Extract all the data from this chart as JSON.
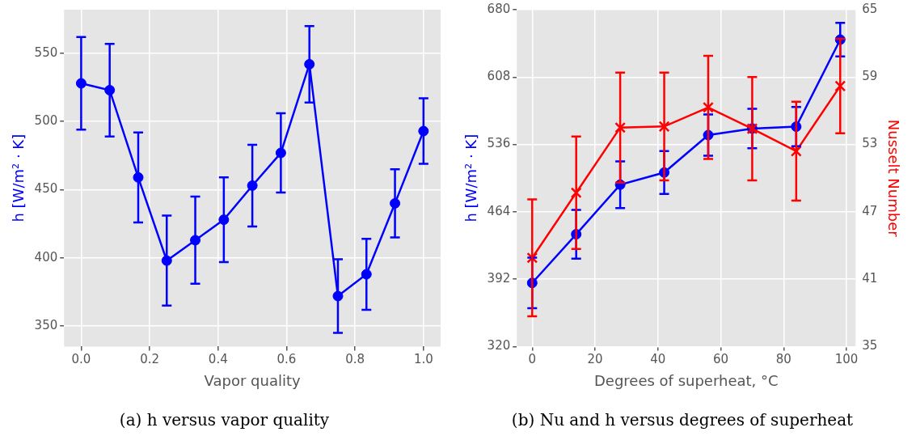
{
  "chart_data": [
    {
      "type": "line",
      "title": "(a) h versus vapor quality",
      "xlabel": "Vapor quality",
      "ylabel": "h [W/m² · K]",
      "x": [
        0,
        0.0833,
        0.1667,
        0.25,
        0.3333,
        0.4167,
        0.5,
        0.5833,
        0.6667,
        0.75,
        0.8333,
        0.9167,
        1
      ],
      "series": [
        {
          "color": "#0000ff",
          "marker": "circle",
          "values": [
            528,
            523,
            459,
            398,
            413,
            428,
            453,
            477,
            542,
            372,
            388,
            440,
            493
          ],
          "errors": [
            34,
            34,
            33,
            33,
            32,
            31,
            30,
            29,
            28,
            27,
            26,
            25,
            24
          ]
        }
      ],
      "xlim": [
        -0.05,
        1.05
      ],
      "xticks": [
        {
          "value": 0,
          "label": "0.0"
        },
        {
          "value": 0.2,
          "label": "0.2"
        },
        {
          "value": 0.4,
          "label": "0.4"
        },
        {
          "value": 0.6,
          "label": "0.6"
        },
        {
          "value": 0.8,
          "label": "0.8"
        },
        {
          "value": 1,
          "label": "1.0"
        }
      ],
      "ylim": [
        335,
        582
      ],
      "yticks": [
        350,
        400,
        450,
        500,
        550
      ],
      "grid": true,
      "legend": false,
      "line_style": "solid"
    },
    {
      "type": "line",
      "title": "(b) Nu and h versus degrees of superheat",
      "xlabel": "Degrees of superheat, °C",
      "ylabel": "h [W/m² · K]",
      "y2label": "Nusselt Number",
      "x": [
        0,
        14,
        28,
        42,
        56,
        70,
        84,
        98
      ],
      "series": [
        {
          "color": "#0000ff",
          "marker": "circle",
          "values": [
            388,
            440,
            493,
            506,
            546,
            553,
            555,
            648
          ],
          "errors": [
            27,
            26,
            25,
            23,
            22,
            21,
            21,
            18
          ]
        },
        {
          "color": "#ff0000",
          "marker": "cross",
          "axis": "y2",
          "values": [
            42.9,
            48.7,
            54.5,
            54.6,
            56.3,
            54.4,
            52.4,
            58.2
          ],
          "errors": [
            5.2,
            5.0,
            4.9,
            4.8,
            4.6,
            4.6,
            4.4,
            4.2
          ]
        }
      ],
      "xlim": [
        -4.9,
        102.9
      ],
      "xticks": [
        0,
        20,
        40,
        60,
        80,
        100
      ],
      "ylim": [
        320,
        680
      ],
      "yticks": [
        320,
        392,
        464,
        536,
        608,
        680
      ],
      "y2lim": [
        35,
        65
      ],
      "y2ticks": [
        35,
        41,
        47,
        53,
        59,
        65
      ],
      "grid": true,
      "legend": false,
      "line_style": "solid"
    }
  ]
}
